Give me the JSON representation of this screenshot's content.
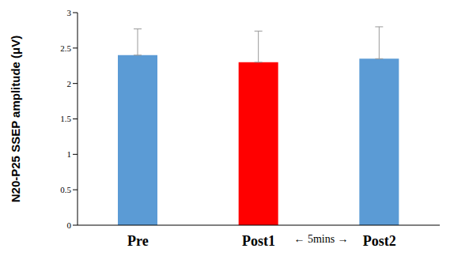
{
  "chart_data": {
    "type": "bar",
    "categories": [
      "Pre",
      "Post1",
      "Post2"
    ],
    "values": [
      2.4,
      2.3,
      2.35
    ],
    "errors": [
      0.37,
      0.44,
      0.45
    ],
    "colors": [
      "#5b9bd5",
      "#ff0000",
      "#5b9bd5"
    ],
    "ylabel": "N20-P25 SSEP amplitude (μV)",
    "annotations": [
      "← 5mins →"
    ],
    "ylim": [
      0,
      3
    ],
    "yticks": [
      0,
      0.5,
      1,
      1.5,
      2,
      2.5,
      3
    ],
    "grid": false
  }
}
